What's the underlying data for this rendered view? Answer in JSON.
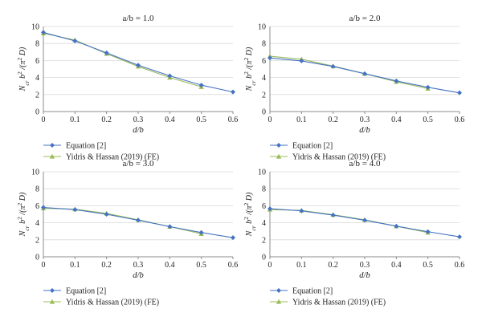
{
  "chart_data": [
    {
      "type": "line",
      "title": "a/b = 1.0",
      "xlabel": "d/b",
      "ylabel": "N_cr b^2 /(π^2 D)",
      "xlim": [
        0,
        0.6
      ],
      "ylim": [
        0,
        10
      ],
      "xticks": [
        "0",
        "0.1",
        "0.2",
        "0.3",
        "0.4",
        "0.5",
        "0.6"
      ],
      "yticks": [
        "0",
        "2",
        "4",
        "6",
        "8",
        "10"
      ],
      "legend_position": "bottom-left",
      "series": [
        {
          "name": "Equation [2]",
          "color": "#4472C4",
          "marker": "diamond",
          "x": [
            0,
            0.1,
            0.2,
            0.3,
            0.4,
            0.5,
            0.6
          ],
          "y": [
            9.3,
            8.3,
            6.9,
            5.45,
            4.2,
            3.1,
            2.3
          ]
        },
        {
          "name": "Yidris & Hassan (2019) (FE)",
          "color": "#9BBB59",
          "marker": "triangle",
          "x": [
            0,
            0.1,
            0.2,
            0.3,
            0.4,
            0.5
          ],
          "y": [
            9.2,
            8.4,
            6.8,
            5.3,
            4.0,
            2.9
          ]
        }
      ]
    },
    {
      "type": "line",
      "title": "a/b = 2.0",
      "xlabel": "d/b",
      "ylabel": "N_cr b^2 /(π^2 D)",
      "xlim": [
        0,
        0.6
      ],
      "ylim": [
        0,
        10
      ],
      "xticks": [
        "0",
        "0.1",
        "0.2",
        "0.3",
        "0.4",
        "0.5",
        "0.6"
      ],
      "yticks": [
        "0",
        "2",
        "4",
        "6",
        "8",
        "10"
      ],
      "legend_position": "bottom-left",
      "series": [
        {
          "name": "Equation [2]",
          "color": "#4472C4",
          "marker": "diamond",
          "x": [
            0,
            0.1,
            0.2,
            0.3,
            0.4,
            0.5,
            0.6
          ],
          "y": [
            6.3,
            5.95,
            5.3,
            4.45,
            3.6,
            2.85,
            2.2
          ]
        },
        {
          "name": "Yidris & Hassan (2019) (FE)",
          "color": "#9BBB59",
          "marker": "triangle",
          "x": [
            0,
            0.1,
            0.2,
            0.3,
            0.4,
            0.5
          ],
          "y": [
            6.5,
            6.15,
            5.35,
            4.45,
            3.5,
            2.7
          ]
        }
      ]
    },
    {
      "type": "line",
      "title": "a/b = 3.0",
      "xlabel": "d/b",
      "ylabel": "N_cr b^2 /(π^2 D)",
      "xlim": [
        0,
        0.6
      ],
      "ylim": [
        0,
        10
      ],
      "xticks": [
        "0",
        "0.1",
        "0.2",
        "0.3",
        "0.4",
        "0.5",
        "0.6"
      ],
      "yticks": [
        "0",
        "2",
        "4",
        "6",
        "8",
        "10"
      ],
      "legend_position": "bottom-left",
      "series": [
        {
          "name": "Equation [2]",
          "color": "#4472C4",
          "marker": "diamond",
          "x": [
            0,
            0.1,
            0.2,
            0.3,
            0.4,
            0.5,
            0.6
          ],
          "y": [
            5.8,
            5.55,
            5.0,
            4.3,
            3.55,
            2.85,
            2.25
          ]
        },
        {
          "name": "Yidris & Hassan (2019) (FE)",
          "color": "#9BBB59",
          "marker": "triangle",
          "x": [
            0,
            0.1,
            0.2,
            0.3,
            0.4,
            0.5
          ],
          "y": [
            5.7,
            5.6,
            5.1,
            4.35,
            3.55,
            2.7
          ]
        }
      ]
    },
    {
      "type": "line",
      "title": "a/b = 4.0",
      "xlabel": "d/b",
      "ylabel": "N_cr b^2 /(π^2 D)",
      "xlim": [
        0,
        0.6
      ],
      "ylim": [
        0,
        10
      ],
      "xticks": [
        "0",
        "0.1",
        "0.2",
        "0.3",
        "0.4",
        "0.5",
        "0.6"
      ],
      "yticks": [
        "0",
        "2",
        "4",
        "6",
        "8",
        "10"
      ],
      "legend_position": "bottom-left",
      "series": [
        {
          "name": "Equation [2]",
          "color": "#4472C4",
          "marker": "diamond",
          "x": [
            0,
            0.1,
            0.2,
            0.3,
            0.4,
            0.5,
            0.6
          ],
          "y": [
            5.65,
            5.4,
            4.9,
            4.3,
            3.6,
            2.95,
            2.35
          ]
        },
        {
          "name": "Yidris & Hassan (2019) (FE)",
          "color": "#9BBB59",
          "marker": "triangle",
          "x": [
            0,
            0.1,
            0.2,
            0.3,
            0.4,
            0.5
          ],
          "y": [
            5.55,
            5.45,
            4.95,
            4.35,
            3.6,
            2.85
          ]
        }
      ]
    }
  ]
}
